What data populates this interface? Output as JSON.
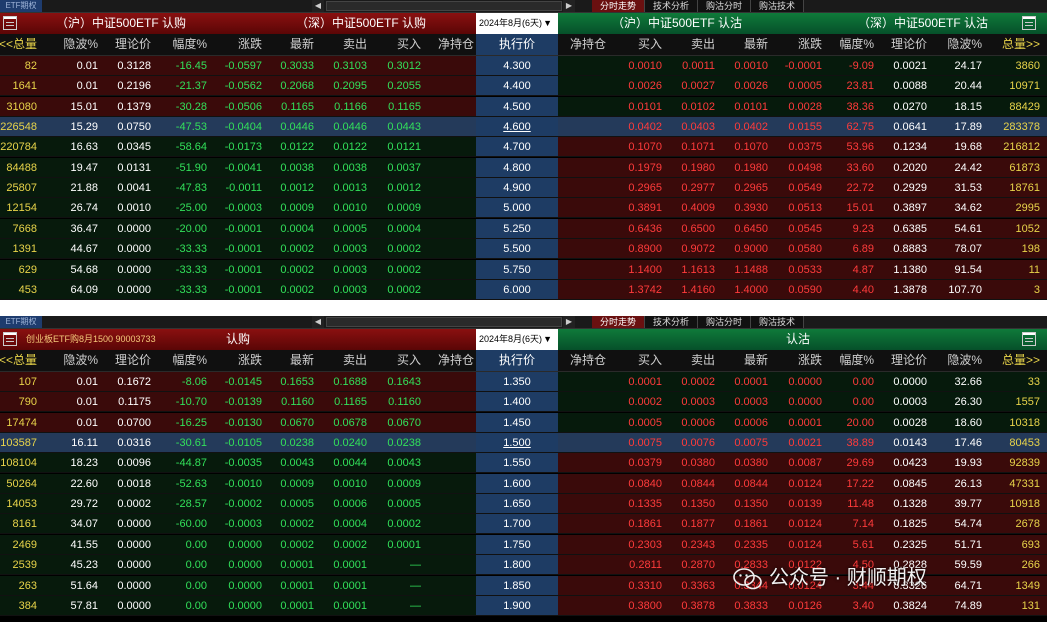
{
  "top": {
    "etf_label": "ETF期权",
    "tabs": [
      "分时走势",
      "技术分析",
      "购沽分时",
      "购沽技术"
    ]
  },
  "panel1": {
    "call_title": "（沪）中证500ETF 认购",
    "call_title2": "（深）中证500ETF 认购",
    "put_title": "（沪）中证500ETF 认沽",
    "put_title2": "（深）中证500ETF 认沽",
    "month": "2024年8月(6天)",
    "call_cols": [
      "<<总量",
      "隐波%",
      "理论价",
      "幅度%",
      "涨跌",
      "最新",
      "卖出",
      "买入",
      "净持仓"
    ],
    "mid_col": "执行价",
    "put_cols": [
      "净持仓",
      "买入",
      "卖出",
      "最新",
      "涨跌",
      "幅度%",
      "理论价",
      "隐波%",
      "总量>>"
    ],
    "rows": [
      {
        "c": [
          "82",
          "0.01",
          "0.3128",
          "-16.45",
          "-0.0597",
          "0.3033",
          "0.3103",
          "0.3012",
          ""
        ],
        "k": "4.300",
        "p": [
          "",
          "0.0010",
          "0.0011",
          "0.0010",
          "-0.0001",
          "-9.09",
          "0.0021",
          "24.17",
          "3860"
        ]
      },
      {
        "c": [
          "1641",
          "0.01",
          "0.2196",
          "-21.37",
          "-0.0562",
          "0.2068",
          "0.2095",
          "0.2055",
          ""
        ],
        "k": "4.400",
        "p": [
          "",
          "0.0026",
          "0.0027",
          "0.0026",
          "0.0005",
          "23.81",
          "0.0088",
          "20.44",
          "10971"
        ]
      },
      {
        "c": [
          "31080",
          "15.01",
          "0.1379",
          "-30.28",
          "-0.0506",
          "0.1165",
          "0.1166",
          "0.1165",
          ""
        ],
        "k": "4.500",
        "p": [
          "",
          "0.0101",
          "0.0102",
          "0.0101",
          "0.0028",
          "38.36",
          "0.0270",
          "18.15",
          "88429"
        ]
      },
      {
        "c": [
          "226548",
          "15.29",
          "0.0750",
          "-47.53",
          "-0.0404",
          "0.0446",
          "0.0446",
          "0.0443",
          ""
        ],
        "k": "4.600",
        "p": [
          "",
          "0.0402",
          "0.0403",
          "0.0402",
          "0.0155",
          "62.75",
          "0.0641",
          "17.89",
          "283378"
        ]
      },
      {
        "c": [
          "220784",
          "16.63",
          "0.0345",
          "-58.64",
          "-0.0173",
          "0.0122",
          "0.0122",
          "0.0121",
          ""
        ],
        "k": "4.700",
        "p": [
          "",
          "0.1070",
          "0.1071",
          "0.1070",
          "0.0375",
          "53.96",
          "0.1234",
          "19.68",
          "216812"
        ]
      },
      {
        "c": [
          "84488",
          "19.47",
          "0.0131",
          "-51.90",
          "-0.0041",
          "0.0038",
          "0.0038",
          "0.0037",
          ""
        ],
        "k": "4.800",
        "p": [
          "",
          "0.1979",
          "0.1980",
          "0.1980",
          "0.0498",
          "33.60",
          "0.2020",
          "24.42",
          "61873"
        ]
      },
      {
        "c": [
          "25807",
          "21.88",
          "0.0041",
          "-47.83",
          "-0.0011",
          "0.0012",
          "0.0013",
          "0.0012",
          ""
        ],
        "k": "4.900",
        "p": [
          "",
          "0.2965",
          "0.2977",
          "0.2965",
          "0.0549",
          "22.72",
          "0.2929",
          "31.53",
          "18761"
        ]
      },
      {
        "c": [
          "12154",
          "26.74",
          "0.0010",
          "-25.00",
          "-0.0003",
          "0.0009",
          "0.0010",
          "0.0009",
          ""
        ],
        "k": "5.000",
        "p": [
          "",
          "0.3891",
          "0.4009",
          "0.3930",
          "0.0513",
          "15.01",
          "0.3897",
          "34.62",
          "2995"
        ]
      },
      {
        "c": [
          "7668",
          "36.47",
          "0.0000",
          "-20.00",
          "-0.0001",
          "0.0004",
          "0.0005",
          "0.0004",
          ""
        ],
        "k": "5.250",
        "p": [
          "",
          "0.6436",
          "0.6500",
          "0.6450",
          "0.0545",
          "9.23",
          "0.6385",
          "54.61",
          "1052"
        ]
      },
      {
        "c": [
          "1391",
          "44.67",
          "0.0000",
          "-33.33",
          "-0.0001",
          "0.0002",
          "0.0003",
          "0.0002",
          ""
        ],
        "k": "5.500",
        "p": [
          "",
          "0.8900",
          "0.9072",
          "0.9000",
          "0.0580",
          "6.89",
          "0.8883",
          "78.07",
          "198"
        ]
      },
      {
        "c": [
          "629",
          "54.68",
          "0.0000",
          "-33.33",
          "-0.0001",
          "0.0002",
          "0.0003",
          "0.0002",
          ""
        ],
        "k": "5.750",
        "p": [
          "",
          "1.1400",
          "1.1613",
          "1.1488",
          "0.0533",
          "4.87",
          "1.1380",
          "91.54",
          "11"
        ]
      },
      {
        "c": [
          "453",
          "64.09",
          "0.0000",
          "-33.33",
          "-0.0001",
          "0.0002",
          "0.0003",
          "0.0002",
          ""
        ],
        "k": "6.000",
        "p": [
          "",
          "1.3742",
          "1.4160",
          "1.4000",
          "0.0590",
          "4.40",
          "1.3878",
          "107.70",
          "3"
        ]
      }
    ],
    "atm_index": 3
  },
  "panel2": {
    "code_label": "创业板ETF购8月1500 90003733",
    "call_title": "认购",
    "put_title": "认沽",
    "month": "2024年8月(6天)",
    "call_cols": [
      "<<总量",
      "隐波%",
      "理论价",
      "幅度%",
      "涨跌",
      "最新",
      "卖出",
      "买入",
      "净持仓"
    ],
    "mid_col": "执行价",
    "put_cols": [
      "净持仓",
      "买入",
      "卖出",
      "最新",
      "涨跌",
      "幅度%",
      "理论价",
      "隐波%",
      "总量>>"
    ],
    "rows": [
      {
        "c": [
          "107",
          "0.01",
          "0.1672",
          "-8.06",
          "-0.0145",
          "0.1653",
          "0.1688",
          "0.1643",
          ""
        ],
        "k": "1.350",
        "p": [
          "",
          "0.0001",
          "0.0002",
          "0.0001",
          "0.0000",
          "0.00",
          "0.0000",
          "32.66",
          "33"
        ]
      },
      {
        "c": [
          "790",
          "0.01",
          "0.1175",
          "-10.70",
          "-0.0139",
          "0.1160",
          "0.1165",
          "0.1160",
          ""
        ],
        "k": "1.400",
        "p": [
          "",
          "0.0002",
          "0.0003",
          "0.0003",
          "0.0000",
          "0.00",
          "0.0003",
          "26.30",
          "1557"
        ]
      },
      {
        "c": [
          "17474",
          "0.01",
          "0.0700",
          "-16.25",
          "-0.0130",
          "0.0670",
          "0.0678",
          "0.0670",
          ""
        ],
        "k": "1.450",
        "p": [
          "",
          "0.0005",
          "0.0006",
          "0.0006",
          "0.0001",
          "20.00",
          "0.0028",
          "18.60",
          "10318"
        ]
      },
      {
        "c": [
          "103587",
          "16.11",
          "0.0316",
          "-30.61",
          "-0.0105",
          "0.0238",
          "0.0240",
          "0.0238",
          ""
        ],
        "k": "1.500",
        "p": [
          "",
          "0.0075",
          "0.0076",
          "0.0075",
          "0.0021",
          "38.89",
          "0.0143",
          "17.46",
          "80453"
        ]
      },
      {
        "c": [
          "108104",
          "18.23",
          "0.0096",
          "-44.87",
          "-0.0035",
          "0.0043",
          "0.0044",
          "0.0043",
          ""
        ],
        "k": "1.550",
        "p": [
          "",
          "0.0379",
          "0.0380",
          "0.0380",
          "0.0087",
          "29.69",
          "0.0423",
          "19.93",
          "92839"
        ]
      },
      {
        "c": [
          "50264",
          "22.60",
          "0.0018",
          "-52.63",
          "-0.0010",
          "0.0009",
          "0.0010",
          "0.0009",
          ""
        ],
        "k": "1.600",
        "p": [
          "",
          "0.0840",
          "0.0844",
          "0.0844",
          "0.0124",
          "17.22",
          "0.0845",
          "26.13",
          "47331"
        ]
      },
      {
        "c": [
          "14053",
          "29.72",
          "0.0002",
          "-28.57",
          "-0.0002",
          "0.0005",
          "0.0006",
          "0.0005",
          ""
        ],
        "k": "1.650",
        "p": [
          "",
          "0.1335",
          "0.1350",
          "0.1350",
          "0.0139",
          "11.48",
          "0.1328",
          "39.77",
          "10918"
        ]
      },
      {
        "c": [
          "8161",
          "34.07",
          "0.0000",
          "-60.00",
          "-0.0003",
          "0.0002",
          "0.0004",
          "0.0002",
          ""
        ],
        "k": "1.700",
        "p": [
          "",
          "0.1861",
          "0.1877",
          "0.1861",
          "0.0124",
          "7.14",
          "0.1825",
          "54.74",
          "2678"
        ]
      },
      {
        "c": [
          "2469",
          "41.55",
          "0.0000",
          "0.00",
          "0.0000",
          "0.0002",
          "0.0002",
          "0.0001",
          ""
        ],
        "k": "1.750",
        "p": [
          "",
          "0.2303",
          "0.2343",
          "0.2335",
          "0.0124",
          "5.61",
          "0.2325",
          "51.71",
          "693"
        ]
      },
      {
        "c": [
          "2539",
          "45.23",
          "0.0000",
          "0.00",
          "0.0000",
          "0.0001",
          "0.0001",
          "—",
          ""
        ],
        "k": "1.800",
        "p": [
          "",
          "0.2811",
          "0.2870",
          "0.2833",
          "0.0122",
          "4.50",
          "0.2828",
          "59.59",
          "266"
        ]
      },
      {
        "c": [
          "263",
          "51.64",
          "0.0000",
          "0.00",
          "0.0000",
          "0.0001",
          "0.0001",
          "—",
          ""
        ],
        "k": "1.850",
        "p": [
          "",
          "0.3310",
          "0.3363",
          "0.3344",
          "0.0124",
          "3.44",
          "0.3326",
          "64.71",
          "1349"
        ]
      },
      {
        "c": [
          "384",
          "57.81",
          "0.0000",
          "0.00",
          "0.0000",
          "0.0001",
          "0.0001",
          "—",
          ""
        ],
        "k": "1.900",
        "p": [
          "",
          "0.3800",
          "0.3878",
          "0.3833",
          "0.0126",
          "3.40",
          "0.3824",
          "74.89",
          "131"
        ]
      }
    ],
    "atm_index": 3
  },
  "watermark": "公众号 · 财顺期权"
}
